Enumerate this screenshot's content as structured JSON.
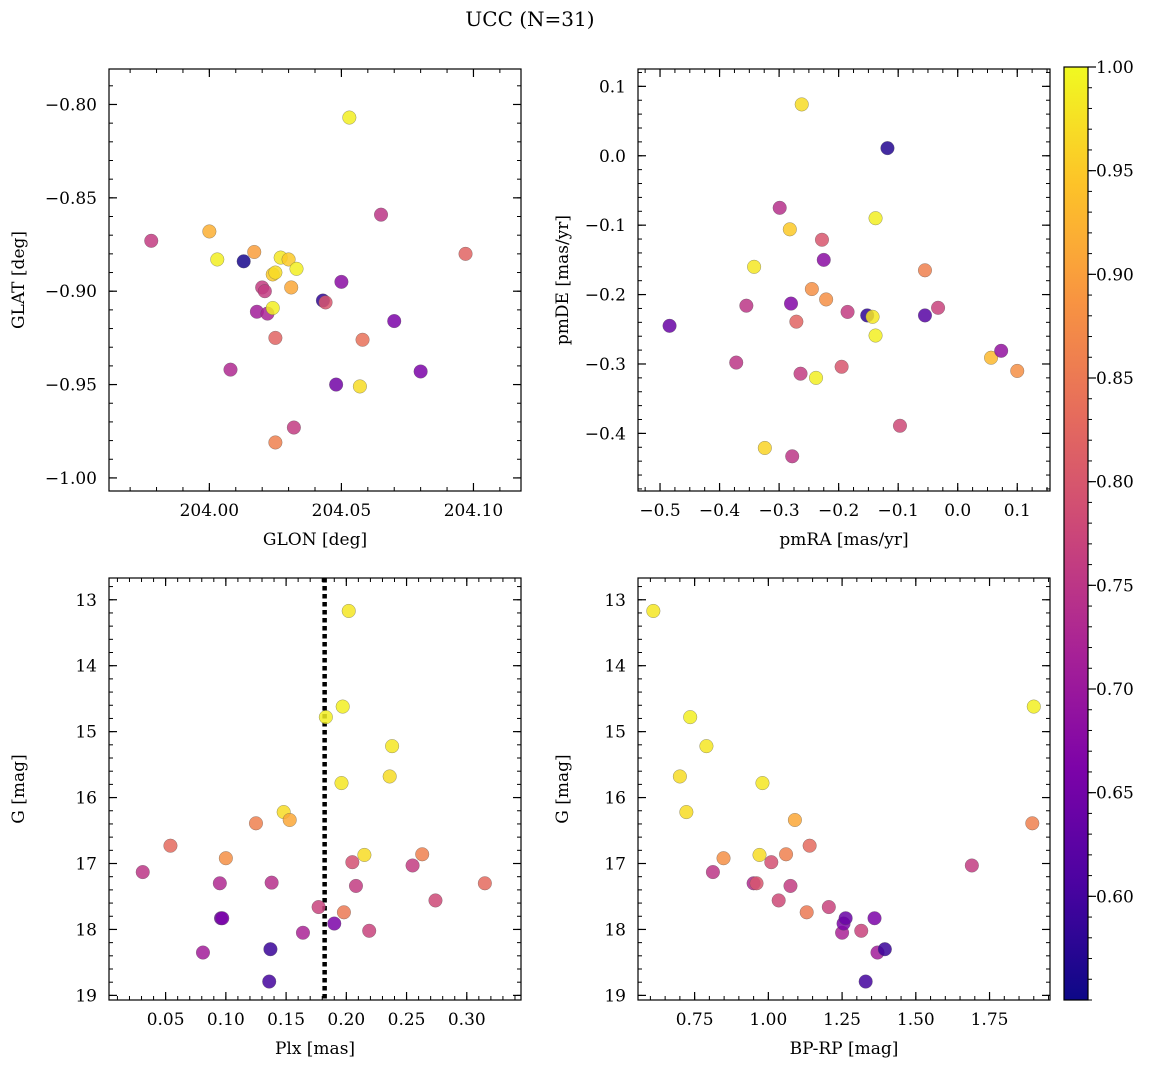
{
  "figure": {
    "suptitle": "UCC (N=31)"
  },
  "colorbar": {
    "colormap": "plasma",
    "vmin": 0.55,
    "vmax": 1.0,
    "ticks": [
      "0.60",
      "0.65",
      "0.70",
      "0.75",
      "0.80",
      "0.85",
      "0.90",
      "0.95",
      "1.00"
    ]
  },
  "chart_data": [
    {
      "type": "scatter",
      "xlabel": "GLON [deg]",
      "ylabel": "GLAT [deg]",
      "xlim": [
        203.962,
        204.118
      ],
      "ylim": [
        -1.007,
        -0.781
      ],
      "xticks": [
        "204.00",
        "204.05",
        "204.10"
      ],
      "yticks": [
        "−0.80",
        "−0.85",
        "−0.90",
        "−0.95",
        "−1.00"
      ],
      "points": [
        {
          "x": 203.978,
          "y": -0.873,
          "c": 0.76
        },
        {
          "x": 204.0,
          "y": -0.868,
          "c": 0.92
        },
        {
          "x": 204.003,
          "y": -0.883,
          "c": 0.99
        },
        {
          "x": 204.008,
          "y": -0.942,
          "c": 0.73
        },
        {
          "x": 204.013,
          "y": -0.884,
          "c": 0.56
        },
        {
          "x": 204.017,
          "y": -0.879,
          "c": 0.9
        },
        {
          "x": 204.018,
          "y": -0.911,
          "c": 0.71
        },
        {
          "x": 204.02,
          "y": -0.898,
          "c": 0.76
        },
        {
          "x": 204.021,
          "y": -0.9,
          "c": 0.76
        },
        {
          "x": 204.022,
          "y": -0.912,
          "c": 0.72
        },
        {
          "x": 204.024,
          "y": -0.891,
          "c": 0.95
        },
        {
          "x": 204.025,
          "y": -0.89,
          "c": 0.97
        },
        {
          "x": 204.024,
          "y": -0.909,
          "c": 0.99
        },
        {
          "x": 204.025,
          "y": -0.925,
          "c": 0.82
        },
        {
          "x": 204.025,
          "y": -0.981,
          "c": 0.86
        },
        {
          "x": 204.027,
          "y": -0.882,
          "c": 0.98
        },
        {
          "x": 204.03,
          "y": -0.883,
          "c": 0.95
        },
        {
          "x": 204.031,
          "y": -0.898,
          "c": 0.91
        },
        {
          "x": 204.032,
          "y": -0.973,
          "c": 0.76
        },
        {
          "x": 204.033,
          "y": -0.888,
          "c": 0.99
        },
        {
          "x": 204.043,
          "y": -0.905,
          "c": 0.58
        },
        {
          "x": 204.044,
          "y": -0.906,
          "c": 0.8
        },
        {
          "x": 204.048,
          "y": -0.95,
          "c": 0.65
        },
        {
          "x": 204.05,
          "y": -0.895,
          "c": 0.68
        },
        {
          "x": 204.053,
          "y": -0.807,
          "c": 0.99
        },
        {
          "x": 204.057,
          "y": -0.951,
          "c": 0.97
        },
        {
          "x": 204.058,
          "y": -0.926,
          "c": 0.84
        },
        {
          "x": 204.065,
          "y": -0.859,
          "c": 0.75
        },
        {
          "x": 204.07,
          "y": -0.916,
          "c": 0.66
        },
        {
          "x": 204.08,
          "y": -0.943,
          "c": 0.66
        },
        {
          "x": 204.097,
          "y": -0.88,
          "c": 0.82
        }
      ]
    },
    {
      "type": "scatter",
      "xlabel": "pmRA [mas/yr]",
      "ylabel": "pmDE [mas/yr]",
      "xlim": [
        -0.537,
        0.155
      ],
      "ylim": [
        -0.483,
        0.125
      ],
      "xticks": [
        "−0.5",
        "−0.4",
        "−0.3",
        "−0.2",
        "−0.1",
        "0.0",
        "0.1"
      ],
      "yticks": [
        "0.1",
        "0.0",
        "−0.1",
        "−0.2",
        "−0.3",
        "−0.4"
      ],
      "points": [
        {
          "x": -0.484,
          "y": -0.245,
          "c": 0.64
        },
        {
          "x": -0.372,
          "y": -0.298,
          "c": 0.75
        },
        {
          "x": -0.355,
          "y": -0.216,
          "c": 0.75
        },
        {
          "x": -0.342,
          "y": -0.16,
          "c": 0.98
        },
        {
          "x": -0.324,
          "y": -0.421,
          "c": 0.96
        },
        {
          "x": -0.299,
          "y": -0.075,
          "c": 0.74
        },
        {
          "x": -0.282,
          "y": -0.106,
          "c": 0.95
        },
        {
          "x": -0.28,
          "y": -0.213,
          "c": 0.67
        },
        {
          "x": -0.278,
          "y": -0.433,
          "c": 0.75
        },
        {
          "x": -0.271,
          "y": -0.239,
          "c": 0.82
        },
        {
          "x": -0.264,
          "y": -0.314,
          "c": 0.76
        },
        {
          "x": -0.262,
          "y": 0.074,
          "c": 0.97
        },
        {
          "x": -0.245,
          "y": -0.192,
          "c": 0.88
        },
        {
          "x": -0.238,
          "y": -0.32,
          "c": 0.99
        },
        {
          "x": -0.228,
          "y": -0.121,
          "c": 0.8
        },
        {
          "x": -0.225,
          "y": -0.15,
          "c": 0.68
        },
        {
          "x": -0.221,
          "y": -0.207,
          "c": 0.88
        },
        {
          "x": -0.195,
          "y": -0.304,
          "c": 0.8
        },
        {
          "x": -0.185,
          "y": -0.225,
          "c": 0.76
        },
        {
          "x": -0.152,
          "y": -0.23,
          "c": 0.58
        },
        {
          "x": -0.143,
          "y": -0.232,
          "c": 0.98
        },
        {
          "x": -0.138,
          "y": -0.09,
          "c": 0.99
        },
        {
          "x": -0.138,
          "y": -0.259,
          "c": 0.99
        },
        {
          "x": -0.118,
          "y": 0.011,
          "c": 0.57
        },
        {
          "x": -0.097,
          "y": -0.389,
          "c": 0.78
        },
        {
          "x": -0.055,
          "y": -0.23,
          "c": 0.62
        },
        {
          "x": -0.055,
          "y": -0.165,
          "c": 0.86
        },
        {
          "x": -0.033,
          "y": -0.219,
          "c": 0.77
        },
        {
          "x": 0.056,
          "y": -0.291,
          "c": 0.93
        },
        {
          "x": 0.073,
          "y": -0.281,
          "c": 0.69
        },
        {
          "x": 0.1,
          "y": -0.31,
          "c": 0.88
        }
      ]
    },
    {
      "type": "scatter",
      "xlabel": "Plx [mas]",
      "ylabel": "G [mag]",
      "xlim": [
        0.003,
        0.345
      ],
      "ylim": [
        19.07,
        12.67
      ],
      "y_inverted": true,
      "xticks": [
        "0.05",
        "0.10",
        "0.15",
        "0.20",
        "0.25",
        "0.30"
      ],
      "yticks": [
        "13",
        "14",
        "15",
        "16",
        "17",
        "18",
        "19"
      ],
      "vline": {
        "x": 0.182,
        "style": "dotted"
      },
      "points": [
        {
          "x": 0.031,
          "y": 17.13,
          "c": 0.75
        },
        {
          "x": 0.054,
          "y": 16.73,
          "c": 0.83
        },
        {
          "x": 0.081,
          "y": 18.35,
          "c": 0.71
        },
        {
          "x": 0.095,
          "y": 17.3,
          "c": 0.73
        },
        {
          "x": 0.096,
          "y": 17.83,
          "c": 0.64
        },
        {
          "x": 0.097,
          "y": 17.83,
          "c": 0.66
        },
        {
          "x": 0.1,
          "y": 16.92,
          "c": 0.88
        },
        {
          "x": 0.125,
          "y": 16.39,
          "c": 0.86
        },
        {
          "x": 0.136,
          "y": 18.79,
          "c": 0.6
        },
        {
          "x": 0.137,
          "y": 18.3,
          "c": 0.59
        },
        {
          "x": 0.138,
          "y": 17.29,
          "c": 0.74
        },
        {
          "x": 0.148,
          "y": 16.22,
          "c": 0.97
        },
        {
          "x": 0.153,
          "y": 16.34,
          "c": 0.91
        },
        {
          "x": 0.164,
          "y": 18.05,
          "c": 0.72
        },
        {
          "x": 0.177,
          "y": 17.66,
          "c": 0.77
        },
        {
          "x": 0.183,
          "y": 14.78,
          "c": 0.99
        },
        {
          "x": 0.19,
          "y": 17.91,
          "c": 0.66
        },
        {
          "x": 0.196,
          "y": 15.78,
          "c": 0.98
        },
        {
          "x": 0.197,
          "y": 14.62,
          "c": 0.99
        },
        {
          "x": 0.198,
          "y": 17.74,
          "c": 0.85
        },
        {
          "x": 0.202,
          "y": 13.17,
          "c": 0.98
        },
        {
          "x": 0.205,
          "y": 16.98,
          "c": 0.79
        },
        {
          "x": 0.208,
          "y": 17.34,
          "c": 0.76
        },
        {
          "x": 0.215,
          "y": 16.87,
          "c": 0.97
        },
        {
          "x": 0.219,
          "y": 18.02,
          "c": 0.77
        },
        {
          "x": 0.236,
          "y": 15.68,
          "c": 0.97
        },
        {
          "x": 0.238,
          "y": 15.22,
          "c": 0.98
        },
        {
          "x": 0.255,
          "y": 17.03,
          "c": 0.76
        },
        {
          "x": 0.263,
          "y": 16.86,
          "c": 0.86
        },
        {
          "x": 0.274,
          "y": 17.56,
          "c": 0.78
        },
        {
          "x": 0.315,
          "y": 17.3,
          "c": 0.83
        }
      ]
    },
    {
      "type": "scatter",
      "xlabel": "BP-RP [mag]",
      "ylabel": "G [mag]",
      "xlim": [
        0.558,
        1.955
      ],
      "ylim": [
        19.07,
        12.67
      ],
      "y_inverted": true,
      "xticks": [
        "0.75",
        "1.00",
        "1.25",
        "1.50",
        "1.75"
      ],
      "yticks": [
        "13",
        "14",
        "15",
        "16",
        "17",
        "18",
        "19"
      ],
      "points": [
        {
          "x": 0.61,
          "y": 13.17,
          "c": 0.98
        },
        {
          "x": 0.7,
          "y": 15.68,
          "c": 0.97
        },
        {
          "x": 0.722,
          "y": 16.22,
          "c": 0.97
        },
        {
          "x": 0.735,
          "y": 14.78,
          "c": 0.99
        },
        {
          "x": 0.79,
          "y": 15.22,
          "c": 0.98
        },
        {
          "x": 0.812,
          "y": 17.13,
          "c": 0.75
        },
        {
          "x": 0.848,
          "y": 16.92,
          "c": 0.88
        },
        {
          "x": 0.95,
          "y": 17.3,
          "c": 0.73
        },
        {
          "x": 0.96,
          "y": 17.3,
          "c": 0.8
        },
        {
          "x": 0.97,
          "y": 16.87,
          "c": 0.97
        },
        {
          "x": 0.98,
          "y": 15.78,
          "c": 0.98
        },
        {
          "x": 1.01,
          "y": 16.98,
          "c": 0.79
        },
        {
          "x": 1.035,
          "y": 17.56,
          "c": 0.78
        },
        {
          "x": 1.06,
          "y": 16.86,
          "c": 0.86
        },
        {
          "x": 1.075,
          "y": 17.34,
          "c": 0.76
        },
        {
          "x": 1.09,
          "y": 16.34,
          "c": 0.91
        },
        {
          "x": 1.13,
          "y": 17.74,
          "c": 0.85
        },
        {
          "x": 1.14,
          "y": 16.73,
          "c": 0.83
        },
        {
          "x": 1.205,
          "y": 17.66,
          "c": 0.77
        },
        {
          "x": 1.25,
          "y": 18.05,
          "c": 0.72
        },
        {
          "x": 1.255,
          "y": 17.91,
          "c": 0.66
        },
        {
          "x": 1.262,
          "y": 17.83,
          "c": 0.64
        },
        {
          "x": 1.315,
          "y": 18.02,
          "c": 0.77
        },
        {
          "x": 1.33,
          "y": 18.79,
          "c": 0.6
        },
        {
          "x": 1.36,
          "y": 17.83,
          "c": 0.66
        },
        {
          "x": 1.37,
          "y": 18.35,
          "c": 0.71
        },
        {
          "x": 1.395,
          "y": 18.3,
          "c": 0.59
        },
        {
          "x": 1.69,
          "y": 17.03,
          "c": 0.76
        },
        {
          "x": 1.895,
          "y": 16.39,
          "c": 0.86
        },
        {
          "x": 1.9,
          "y": 14.62,
          "c": 0.99
        }
      ]
    }
  ]
}
